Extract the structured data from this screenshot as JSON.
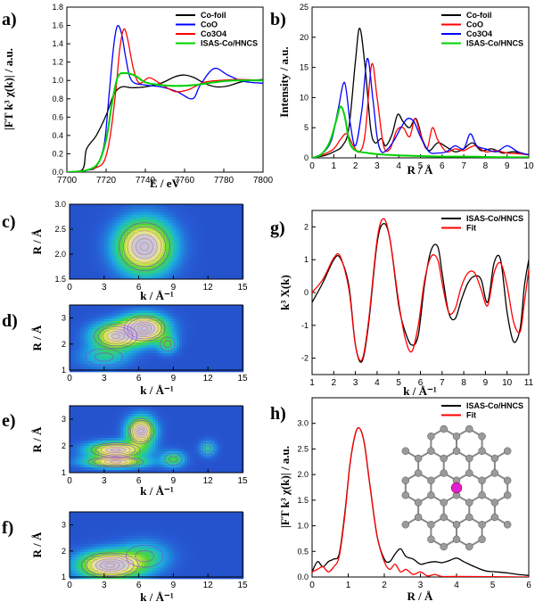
{
  "chart_data": [
    {
      "panel": "a)",
      "type": "line",
      "xlabel": "E / eV",
      "ylabel": "|FT k³ χ(k)| / a.u.",
      "xlim": [
        7700,
        7800
      ],
      "ylim": [
        0.0,
        1.8
      ],
      "xticks": [
        "7700",
        "7720",
        "7740",
        "7760",
        "7780",
        "7800"
      ],
      "yticks": [
        "0.0",
        "0.2",
        "0.4",
        "0.6",
        "0.8",
        "1.0",
        "1.2",
        "1.4",
        "1.6",
        "1.8"
      ],
      "legend": "top-right",
      "series": [
        {
          "name": "Co-foil",
          "color": "#000000",
          "x": [
            7700,
            7708,
            7710,
            7715,
            7720,
            7724,
            7728,
            7733,
            7740,
            7748,
            7755,
            7760,
            7765,
            7770,
            7776,
            7782,
            7790,
            7800
          ],
          "y": [
            0.0,
            0.03,
            0.25,
            0.4,
            0.62,
            0.85,
            0.93,
            0.92,
            0.93,
            0.97,
            1.04,
            1.06,
            1.03,
            0.97,
            0.93,
            0.94,
            0.99,
            1.01
          ]
        },
        {
          "name": "CoO",
          "color": "#0000ff",
          "x": [
            7700,
            7710,
            7715,
            7719,
            7721,
            7723,
            7724.5,
            7726,
            7728,
            7730,
            7733,
            7740,
            7748,
            7756,
            7764,
            7768,
            7775,
            7782,
            7790,
            7800
          ],
          "y": [
            0.0,
            0.02,
            0.06,
            0.3,
            0.72,
            1.2,
            1.48,
            1.6,
            1.5,
            1.25,
            1.0,
            0.95,
            0.93,
            0.88,
            0.8,
            0.95,
            1.13,
            1.06,
            0.99,
            0.97
          ]
        },
        {
          "name": "Co3O4",
          "color": "#ff0000",
          "x": [
            7700,
            7710,
            7715,
            7719,
            7722,
            7725,
            7727,
            7729,
            7731,
            7734,
            7737,
            7742,
            7748,
            7755,
            7762,
            7770,
            7778,
            7788,
            7800
          ],
          "y": [
            0.0,
            0.02,
            0.05,
            0.12,
            0.38,
            0.9,
            1.35,
            1.56,
            1.45,
            1.12,
            0.97,
            1.03,
            0.96,
            0.88,
            0.9,
            0.98,
            1.0,
            1.01,
            1.0
          ]
        },
        {
          "name": "ISAS-Co/HNCS",
          "color": "#00d200",
          "x": [
            7700,
            7710,
            7716,
            7720,
            7723,
            7726,
            7730,
            7735,
            7740,
            7748,
            7756,
            7765,
            7775,
            7785,
            7800
          ],
          "y": [
            0.0,
            0.02,
            0.1,
            0.35,
            0.75,
            1.04,
            1.08,
            1.05,
            0.98,
            0.95,
            0.94,
            0.95,
            0.98,
            1.0,
            1.0
          ]
        }
      ]
    },
    {
      "panel": "b)",
      "type": "line",
      "xlabel": "R / Å",
      "ylabel": "Intensity / a.u.",
      "xlim": [
        0,
        10
      ],
      "ylim": [
        0,
        25
      ],
      "xticks": [
        "0",
        "1",
        "2",
        "3",
        "4",
        "5",
        "6",
        "7",
        "8",
        "9",
        "10"
      ],
      "yticks": [
        "0",
        "5",
        "10",
        "15",
        "20",
        "25"
      ],
      "legend": "top-right",
      "series": [
        {
          "name": "Co-foil",
          "color": "#000000",
          "x": [
            0,
            0.6,
            1.0,
            1.4,
            1.7,
            2.0,
            2.2,
            2.45,
            2.7,
            2.9,
            3.2,
            3.4,
            3.7,
            3.95,
            4.2,
            4.5,
            4.8,
            5.1,
            5.4,
            5.8,
            6.2,
            6.6,
            7.0,
            7.4,
            7.8,
            8.3,
            8.8,
            9.3,
            10
          ],
          "y": [
            0,
            0.4,
            1,
            2,
            5,
            16,
            21.5,
            15,
            5,
            2.5,
            3.2,
            2,
            4,
            7.2,
            6,
            5,
            6.5,
            3,
            1.2,
            2.5,
            1.8,
            1,
            1.5,
            2.5,
            1.2,
            1.5,
            0.8,
            1,
            0.5
          ]
        },
        {
          "name": "CoO",
          "color": "#ff0000",
          "x": [
            0,
            0.5,
            1.0,
            1.3,
            1.6,
            1.9,
            2.2,
            2.45,
            2.75,
            3.0,
            3.3,
            3.6,
            3.9,
            4.2,
            4.5,
            4.75,
            5.0,
            5.3,
            5.55,
            5.8,
            6.2,
            6.6,
            7.0,
            7.5,
            8.0,
            8.5,
            9.0,
            9.5,
            10
          ],
          "y": [
            0,
            0.5,
            1.5,
            3,
            4,
            2,
            1,
            4,
            15.5,
            10,
            2,
            1.5,
            4.5,
            5,
            3.5,
            6.5,
            4,
            1.5,
            5,
            3,
            1,
            1.5,
            1.2,
            2,
            1,
            1.2,
            0.8,
            0.7,
            0.5
          ]
        },
        {
          "name": "Co3O4",
          "color": "#0000ff",
          "x": [
            0,
            0.5,
            0.9,
            1.2,
            1.5,
            1.75,
            2.0,
            2.3,
            2.55,
            2.8,
            3.0,
            3.2,
            3.5,
            3.8,
            4.1,
            4.4,
            4.7,
            5.0,
            5.4,
            5.8,
            6.2,
            6.6,
            7.0,
            7.3,
            7.6,
            8.0,
            8.5,
            9.0,
            9.5,
            10
          ],
          "y": [
            0,
            0.8,
            3,
            8,
            12.5,
            6,
            2,
            8,
            16.5,
            10,
            3.5,
            1,
            1.5,
            3,
            5,
            6.5,
            6,
            3.5,
            1,
            0.8,
            1,
            2,
            1.5,
            4,
            2,
            1.5,
            1,
            2,
            1,
            0.5
          ]
        },
        {
          "name": "ISAS-Co/HNCS",
          "color": "#00d200",
          "x": [
            0,
            0.4,
            0.8,
            1.1,
            1.3,
            1.5,
            1.7,
            1.9,
            2.2,
            2.6,
            3.0,
            3.5,
            4.0,
            4.5,
            5.0,
            6,
            7,
            8,
            9,
            10
          ],
          "y": [
            0,
            0.5,
            2.5,
            6,
            8.5,
            7,
            3,
            1.5,
            1,
            0.8,
            0.6,
            0.5,
            0.4,
            0.35,
            0.3,
            0.2,
            0.2,
            0.15,
            0.1,
            0.1
          ]
        }
      ]
    },
    {
      "panel": "c)",
      "type": "heatmap",
      "xlabel": "k / Å⁻¹",
      "ylabel": "R / Å",
      "xlim": [
        0,
        15
      ],
      "ylim": [
        1.5,
        3.0
      ],
      "xticks": [
        "0",
        "3",
        "6",
        "9",
        "12",
        "15"
      ],
      "yticks": [
        "1.5",
        "2.0",
        "2.5",
        "3.0"
      ],
      "peaks": [
        {
          "k": 6.5,
          "R": 2.15,
          "amp": 1.0,
          "sk": 1.6,
          "sr": 0.35
        }
      ]
    },
    {
      "panel": "d)",
      "type": "heatmap",
      "xlabel": "k / Å⁻¹",
      "ylabel": "R / Å",
      "xlim": [
        0,
        15
      ],
      "ylim": [
        1,
        3.5
      ],
      "xticks": [
        "0",
        "3",
        "6",
        "9",
        "12",
        "15"
      ],
      "yticks": [
        "1",
        "2",
        "3"
      ],
      "peaks": [
        {
          "k": 6.5,
          "R": 2.6,
          "amp": 1.0,
          "sk": 1.3,
          "sr": 0.35
        },
        {
          "k": 4.0,
          "R": 2.3,
          "amp": 0.75,
          "sk": 1.4,
          "sr": 0.35
        },
        {
          "k": 8.5,
          "R": 2.0,
          "amp": 0.35,
          "sk": 0.6,
          "sr": 0.25
        },
        {
          "k": 3.0,
          "R": 1.5,
          "amp": 0.25,
          "sk": 1.5,
          "sr": 0.3
        }
      ]
    },
    {
      "panel": "e)",
      "type": "heatmap",
      "xlabel": "k / Å⁻¹",
      "ylabel": "R / Å",
      "xlim": [
        0,
        15
      ],
      "ylim": [
        1,
        3.5
      ],
      "xticks": [
        "0",
        "3",
        "6",
        "9",
        "12",
        "15"
      ],
      "yticks": [
        "1",
        "2",
        "3"
      ],
      "peaks": [
        {
          "k": 6.2,
          "R": 2.55,
          "amp": 0.95,
          "sk": 0.8,
          "sr": 0.35
        },
        {
          "k": 4.0,
          "R": 1.85,
          "amp": 0.85,
          "sk": 1.6,
          "sr": 0.2
        },
        {
          "k": 4.0,
          "R": 1.4,
          "amp": 0.75,
          "sk": 1.8,
          "sr": 0.15
        },
        {
          "k": 9.0,
          "R": 1.5,
          "amp": 0.4,
          "sk": 0.7,
          "sr": 0.2
        },
        {
          "k": 12.0,
          "R": 1.9,
          "amp": 0.3,
          "sk": 0.5,
          "sr": 0.2
        }
      ]
    },
    {
      "panel": "f)",
      "type": "heatmap",
      "xlabel": "k / Å⁻¹",
      "ylabel": "R / Å",
      "xlim": [
        0,
        15
      ],
      "ylim": [
        1,
        3.5
      ],
      "xticks": [
        "0",
        "3",
        "6",
        "9",
        "12",
        "15"
      ],
      "yticks": [
        "1",
        "2",
        "3"
      ],
      "peaks": [
        {
          "k": 3.5,
          "R": 1.45,
          "amp": 1.0,
          "sk": 1.8,
          "sr": 0.35
        },
        {
          "k": 6.5,
          "R": 1.8,
          "amp": 0.3,
          "sk": 1.5,
          "sr": 0.4
        }
      ]
    },
    {
      "panel": "g)",
      "type": "line",
      "xlabel": "k / Å⁻¹",
      "ylabel": "k³ Χ(k)",
      "xlim": [
        1,
        11
      ],
      "ylim": [
        -2.5,
        2.5
      ],
      "xticks": [
        "1",
        "2",
        "3",
        "4",
        "5",
        "6",
        "7",
        "8",
        "9",
        "10",
        "11"
      ],
      "yticks": [
        "-2",
        "-1",
        "0",
        "1",
        "2"
      ],
      "legend": "top-right",
      "series": [
        {
          "name": "ISAS-Co/HNCS",
          "color": "#000000",
          "x": [
            1,
            1.5,
            2.0,
            2.3,
            2.7,
            3.0,
            3.3,
            3.6,
            4.0,
            4.3,
            4.6,
            5.0,
            5.3,
            5.6,
            5.9,
            6.2,
            6.5,
            6.8,
            7.0,
            7.3,
            7.6,
            7.9,
            8.2,
            8.5,
            8.8,
            9.1,
            9.4,
            9.7,
            10.0,
            10.3,
            10.6,
            10.8,
            11
          ],
          "y": [
            -0.3,
            0.3,
            1.0,
            1.05,
            0.2,
            -1.6,
            -2.1,
            -1.0,
            1.5,
            2.1,
            1.6,
            -0.4,
            -1.2,
            -1.6,
            -1.3,
            0.3,
            1.3,
            1.4,
            0.6,
            -0.6,
            -0.8,
            -0.2,
            0.3,
            0.5,
            0.4,
            -0.3,
            0.9,
            1.0,
            -0.6,
            -1.5,
            -1.1,
            0.2,
            1.0
          ]
        },
        {
          "name": "Fit",
          "color": "#ff0000",
          "x": [
            1,
            1.5,
            2.0,
            2.3,
            2.7,
            3.0,
            3.3,
            3.6,
            4.0,
            4.3,
            4.6,
            5.0,
            5.3,
            5.6,
            5.9,
            6.2,
            6.5,
            6.8,
            7.0,
            7.3,
            7.6,
            7.9,
            8.2,
            8.5,
            8.8,
            9.1,
            9.4,
            9.7,
            10.0,
            10.3,
            10.6,
            10.8,
            11
          ],
          "y": [
            0.0,
            0.4,
            1.05,
            1.1,
            0.1,
            -1.6,
            -2.05,
            -0.9,
            1.6,
            2.25,
            1.6,
            -0.3,
            -1.4,
            -1.8,
            -1.0,
            0.4,
            1.1,
            1.0,
            0.3,
            -0.6,
            -0.5,
            0.2,
            0.6,
            0.6,
            0.1,
            -0.4,
            0.6,
            0.9,
            0.2,
            -0.9,
            -1.2,
            -0.3,
            0.7
          ]
        }
      ]
    },
    {
      "panel": "h)",
      "type": "line",
      "xlabel": "R / Å",
      "ylabel": "|FT k³ χ(k)| / a.u.",
      "xlim": [
        0,
        6
      ],
      "ylim": [
        0.0,
        3.5
      ],
      "xticks": [
        "0",
        "1",
        "2",
        "3",
        "4",
        "5",
        "6"
      ],
      "yticks": [
        "0.0",
        "0.5",
        "1.0",
        "1.5",
        "2.0",
        "2.5",
        "3.0"
      ],
      "legend": "top-right",
      "series": [
        {
          "name": "ISAS-Co/HNCS",
          "color": "#000000",
          "x": [
            0,
            0.15,
            0.3,
            0.45,
            0.6,
            0.75,
            0.9,
            1.05,
            1.2,
            1.32,
            1.45,
            1.6,
            1.8,
            2.0,
            2.15,
            2.3,
            2.45,
            2.6,
            2.8,
            3.0,
            3.2,
            3.4,
            3.6,
            3.8,
            4.0,
            4.2,
            4.5,
            4.8,
            5.1,
            5.4,
            5.7,
            6.0
          ],
          "y": [
            0.1,
            0.3,
            0.2,
            0.3,
            0.35,
            0.45,
            1.2,
            2.2,
            2.8,
            2.9,
            2.6,
            1.8,
            0.8,
            0.35,
            0.3,
            0.45,
            0.55,
            0.4,
            0.35,
            0.25,
            0.28,
            0.3,
            0.28,
            0.32,
            0.37,
            0.3,
            0.2,
            0.12,
            0.1,
            0.08,
            0.05,
            0.03
          ]
        },
        {
          "name": "Fit",
          "color": "#ff0000",
          "x": [
            0,
            0.15,
            0.3,
            0.45,
            0.6,
            0.75,
            0.9,
            1.05,
            1.2,
            1.32,
            1.45,
            1.6,
            1.8,
            2.0,
            2.15,
            2.3,
            2.45,
            2.6,
            2.8,
            3.0,
            3.2,
            3.4,
            3.6,
            4.0,
            6.0
          ],
          "y": [
            0.1,
            0.15,
            0.2,
            0.1,
            0.2,
            0.4,
            1.15,
            2.2,
            2.8,
            2.9,
            2.6,
            1.8,
            0.8,
            0.3,
            0.15,
            0.25,
            0.1,
            0.15,
            0.05,
            0.1,
            0.02,
            0.05,
            0.01,
            0.01,
            0.0
          ]
        }
      ]
    }
  ]
}
